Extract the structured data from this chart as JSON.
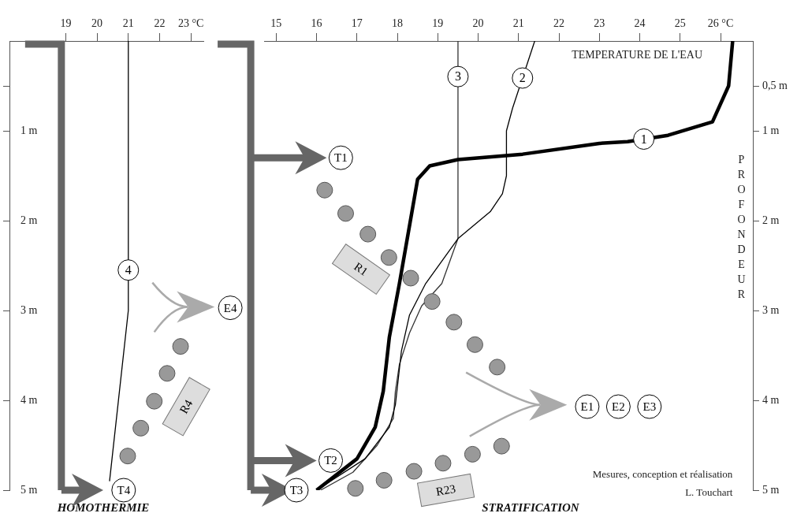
{
  "chart_data": [
    {
      "type": "line",
      "title": "HOMOTHERMIE",
      "xlim": [
        17.2,
        23.4
      ],
      "xticks": [
        19,
        20,
        21,
        22,
        {
          "value": 23,
          "label": "23 °C"
        }
      ],
      "ylim": [
        5,
        0
      ],
      "yticks": [
        {
          "value": 0.5,
          "label": null
        },
        {
          "value": 1,
          "label": "1 m"
        },
        {
          "value": 2,
          "label": "2 m"
        },
        {
          "value": 3,
          "label": "3 m"
        },
        {
          "value": 4,
          "label": "4 m"
        },
        {
          "value": 5,
          "label": "5 m"
        }
      ],
      "series": [
        {
          "name": "4",
          "color": "#000000",
          "x": [
            21.0,
            21.0,
            20.4
          ],
          "values": [
            0,
            3.0,
            4.9
          ]
        }
      ],
      "annotations": [
        "T4",
        "R4",
        "E4"
      ]
    },
    {
      "type": "line",
      "title": "STRATIFICATION",
      "xlabel": "TEMPERATURE DE L'EAU",
      "ylabel": "PROFONDEUR",
      "xlim": [
        14.7,
        26.8
      ],
      "xticks": [
        15,
        16,
        17,
        18,
        19,
        20,
        21,
        22,
        23,
        24,
        25,
        {
          "value": 26,
          "label": "26 °C"
        }
      ],
      "ylim": [
        5,
        0
      ],
      "yticks": [
        {
          "value": 0.5,
          "label": "0,5 m"
        },
        {
          "value": 1,
          "label": "1 m"
        },
        {
          "value": 2,
          "label": "2 m"
        },
        {
          "value": 3,
          "label": "3 m"
        },
        {
          "value": 4,
          "label": "4 m"
        },
        {
          "value": 5,
          "label": "5 m"
        }
      ],
      "series": [
        {
          "name": "1",
          "color": "#000000",
          "x": [
            26.3,
            26.2,
            25.8,
            24.7,
            23.7,
            23.0,
            21.1,
            19.5,
            18.8,
            18.5,
            18.4,
            18.05,
            17.8,
            17.65,
            17.45,
            17.0,
            16.0
          ],
          "values": [
            0,
            0.5,
            0.9,
            1.05,
            1.12,
            1.14,
            1.26,
            1.32,
            1.39,
            1.54,
            1.8,
            2.7,
            3.3,
            3.9,
            4.3,
            4.65,
            5.0
          ]
        },
        {
          "name": "2",
          "color": "#000000",
          "x": [
            21.4,
            20.85,
            20.7,
            20.7,
            20.6,
            20.3,
            19.5,
            18.7,
            18.3,
            18.1,
            17.95,
            17.8,
            17.2,
            16.0
          ],
          "values": [
            0,
            0.75,
            1.0,
            1.5,
            1.7,
            1.9,
            2.2,
            2.7,
            3.05,
            3.45,
            4.05,
            4.3,
            4.65,
            5.0
          ]
        },
        {
          "name": "3",
          "color": "#333333",
          "x": [
            19.5,
            19.5,
            19.1,
            18.6,
            18.3,
            18.05,
            17.95,
            17.9,
            17.5,
            16.9,
            16.1
          ],
          "values": [
            0,
            2.2,
            2.7,
            2.95,
            3.25,
            3.6,
            3.9,
            4.2,
            4.5,
            4.8,
            5.0
          ]
        }
      ],
      "annotations": [
        "T1",
        "T2",
        "T3",
        "R1",
        "R23",
        "E1",
        "E2",
        "E3",
        "Mesures, conception et réalisation",
        "L. Touchart"
      ]
    }
  ]
}
